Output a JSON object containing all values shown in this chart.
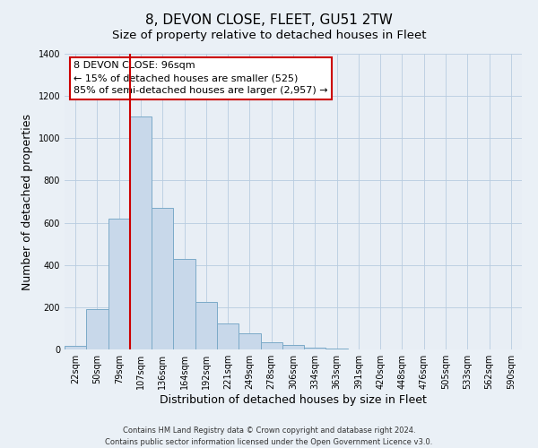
{
  "title": "8, DEVON CLOSE, FLEET, GU51 2TW",
  "subtitle": "Size of property relative to detached houses in Fleet",
  "xlabel": "Distribution of detached houses by size in Fleet",
  "ylabel": "Number of detached properties",
  "categories": [
    "22sqm",
    "50sqm",
    "79sqm",
    "107sqm",
    "136sqm",
    "164sqm",
    "192sqm",
    "221sqm",
    "249sqm",
    "278sqm",
    "306sqm",
    "334sqm",
    "363sqm",
    "391sqm",
    "420sqm",
    "448sqm",
    "476sqm",
    "505sqm",
    "533sqm",
    "562sqm",
    "590sqm"
  ],
  "values": [
    15,
    190,
    620,
    1105,
    670,
    430,
    225,
    125,
    78,
    32,
    22,
    8,
    3,
    1,
    0,
    0,
    0,
    0,
    0,
    0,
    0
  ],
  "bar_color": "#c8d8ea",
  "bar_edge_color": "#7baac8",
  "vline_x_index": 2.5,
  "vline_color": "#cc0000",
  "annotation_line1": "8 DEVON CLOSE: 96sqm",
  "annotation_line2": "← 15% of detached houses are smaller (525)",
  "annotation_line3": "85% of semi-detached houses are larger (2,957) →",
  "box_edge_color": "#cc0000",
  "box_face_color": "#ffffff",
  "ylim": [
    0,
    1400
  ],
  "yticks": [
    0,
    200,
    400,
    600,
    800,
    1000,
    1200,
    1400
  ],
  "footer_line1": "Contains HM Land Registry data © Crown copyright and database right 2024.",
  "footer_line2": "Contains public sector information licensed under the Open Government Licence v3.0.",
  "bg_color": "#eaf0f6",
  "plot_bg_color": "#e8eef5",
  "grid_color": "#b8cce0",
  "title_fontsize": 11,
  "subtitle_fontsize": 9.5,
  "axis_label_fontsize": 9,
  "tick_fontsize": 7,
  "annotation_fontsize": 8,
  "footer_fontsize": 6
}
